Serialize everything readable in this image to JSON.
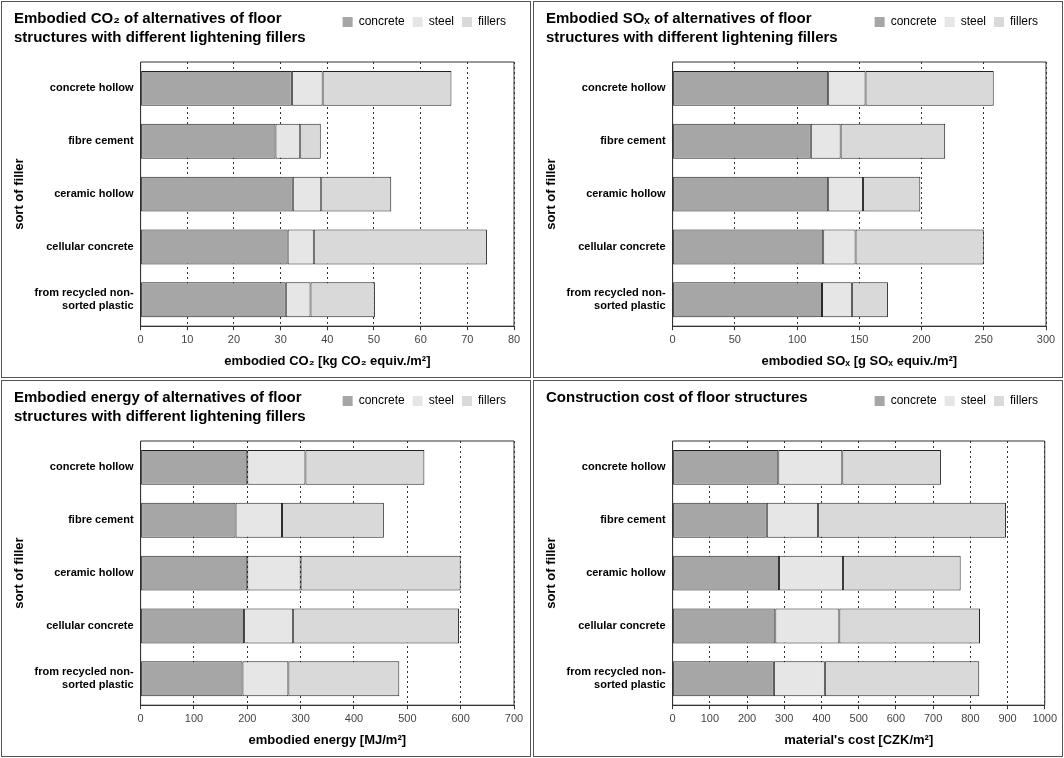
{
  "chart_data": [
    {
      "type": "bar",
      "orientation": "horizontal",
      "stacked": true,
      "title": "Embodied CO₂ of alternatives of floor structures with different lightening fillers",
      "xlabel": "embodied CO₂ [kg CO₂ equiv./m²]",
      "ylabel": "sort of filler",
      "categories": [
        "concrete hollow",
        "fibre cement",
        "ceramic hollow",
        "cellular concrete",
        "from recycled non-sorted plastic"
      ],
      "series": [
        {
          "name": "concrete",
          "color": "#a6a6a6",
          "values": [
            32.4,
            28.9,
            32.6,
            31.5,
            31.1
          ]
        },
        {
          "name": "steel",
          "color": "#e6e6e6",
          "values": [
            6.6,
            5.3,
            6.1,
            5.6,
            5.3
          ]
        },
        {
          "name": "fillers",
          "color": "#d9d9d9",
          "values": [
            27.6,
            4.4,
            15.0,
            37.1,
            13.8
          ]
        }
      ],
      "xlim": [
        0,
        80
      ],
      "xticks": [
        0,
        10,
        20,
        30,
        40,
        50,
        60,
        70,
        80
      ],
      "grid": "x",
      "legend": "top right"
    },
    {
      "type": "bar",
      "orientation": "horizontal",
      "stacked": true,
      "title": "Embodied SOₓ of alternatives of floor structures with different lightening fillers",
      "xlabel": "embodied SOₓ [g SOₓ equiv./m²]",
      "ylabel": "sort of filler",
      "categories": [
        "concrete hollow",
        "fibre cement",
        "ceramic hollow",
        "cellular concrete",
        "from recycled non-sorted plastic"
      ],
      "series": [
        {
          "name": "concrete",
          "color": "#a6a6a6",
          "values": [
            125,
            111,
            125,
            121,
            120
          ]
        },
        {
          "name": "steel",
          "color": "#e6e6e6",
          "values": [
            30,
            24,
            28,
            26,
            24
          ]
        },
        {
          "name": "fillers",
          "color": "#d9d9d9",
          "values": [
            103,
            84,
            46,
            103,
            29
          ]
        }
      ],
      "xlim": [
        0,
        300
      ],
      "xticks": [
        0,
        50,
        100,
        150,
        200,
        250,
        300
      ],
      "grid": "x",
      "legend": "top right"
    },
    {
      "type": "bar",
      "orientation": "horizontal",
      "stacked": true,
      "title": "Embodied energy of alternatives of floor structures with different lightening fillers",
      "xlabel": "embodied energy [MJ/m²]",
      "ylabel": "sort of filler",
      "categories": [
        "concrete hollow",
        "fibre cement",
        "ceramic hollow",
        "cellular concrete",
        "from recycled non-sorted plastic"
      ],
      "series": [
        {
          "name": "concrete",
          "color": "#a6a6a6",
          "values": [
            200,
            178,
            200,
            194,
            191
          ]
        },
        {
          "name": "steel",
          "color": "#e6e6e6",
          "values": [
            109,
            87,
            100,
            92,
            86
          ]
        },
        {
          "name": "fillers",
          "color": "#d9d9d9",
          "values": [
            223,
            191,
            300,
            311,
            208
          ]
        }
      ],
      "xlim": [
        0,
        700
      ],
      "xticks": [
        0,
        100,
        200,
        300,
        400,
        500,
        600,
        700
      ],
      "grid": "x",
      "legend": "top right"
    },
    {
      "type": "bar",
      "orientation": "horizontal",
      "stacked": true,
      "title": "Construction cost of floor structures",
      "xlabel": "material's cost [CZK/m²]",
      "ylabel": "sort of filler",
      "categories": [
        "concrete hollow",
        "fibre cement",
        "ceramic hollow",
        "cellular concrete",
        "from recycled non-sorted plastic"
      ],
      "series": [
        {
          "name": "concrete",
          "color": "#a6a6a6",
          "values": [
            284,
            253,
            286,
            276,
            272
          ]
        },
        {
          "name": "steel",
          "color": "#e6e6e6",
          "values": [
            172,
            138,
            172,
            172,
            137
          ]
        },
        {
          "name": "fillers",
          "color": "#d9d9d9",
          "values": [
            265,
            505,
            316,
            378,
            415
          ]
        }
      ],
      "xlim": [
        0,
        1000
      ],
      "xticks": [
        0,
        100,
        200,
        300,
        400,
        500,
        600,
        700,
        800,
        900,
        1000
      ],
      "grid": "x",
      "legend": "top right"
    }
  ]
}
